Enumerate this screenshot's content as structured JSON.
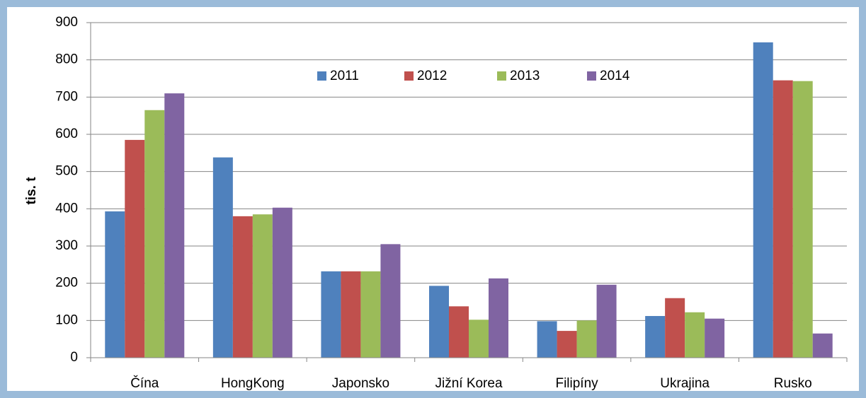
{
  "chart_data": {
    "type": "bar",
    "y_label": "tis. t",
    "categories": [
      "Čína",
      "HongKong",
      "Japonsko",
      "Jižní Korea",
      "Filipíny",
      "Ukrajina",
      "Rusko"
    ],
    "series": [
      {
        "name": "2011",
        "color": "#4f81bd",
        "values": [
          393,
          538,
          232,
          193,
          98,
          112,
          847
        ]
      },
      {
        "name": "2012",
        "color": "#c0504d",
        "values": [
          585,
          380,
          232,
          138,
          72,
          160,
          745
        ]
      },
      {
        "name": "2013",
        "color": "#9bbb59",
        "values": [
          665,
          385,
          232,
          102,
          100,
          122,
          743
        ]
      },
      {
        "name": "2014",
        "color": "#8064a2",
        "values": [
          710,
          403,
          305,
          213,
          196,
          105,
          65
        ]
      }
    ],
    "ylim": [
      0,
      900
    ],
    "yticks": [
      0,
      100,
      200,
      300,
      400,
      500,
      600,
      700,
      800,
      900
    ],
    "grid": true,
    "legend": "top"
  }
}
